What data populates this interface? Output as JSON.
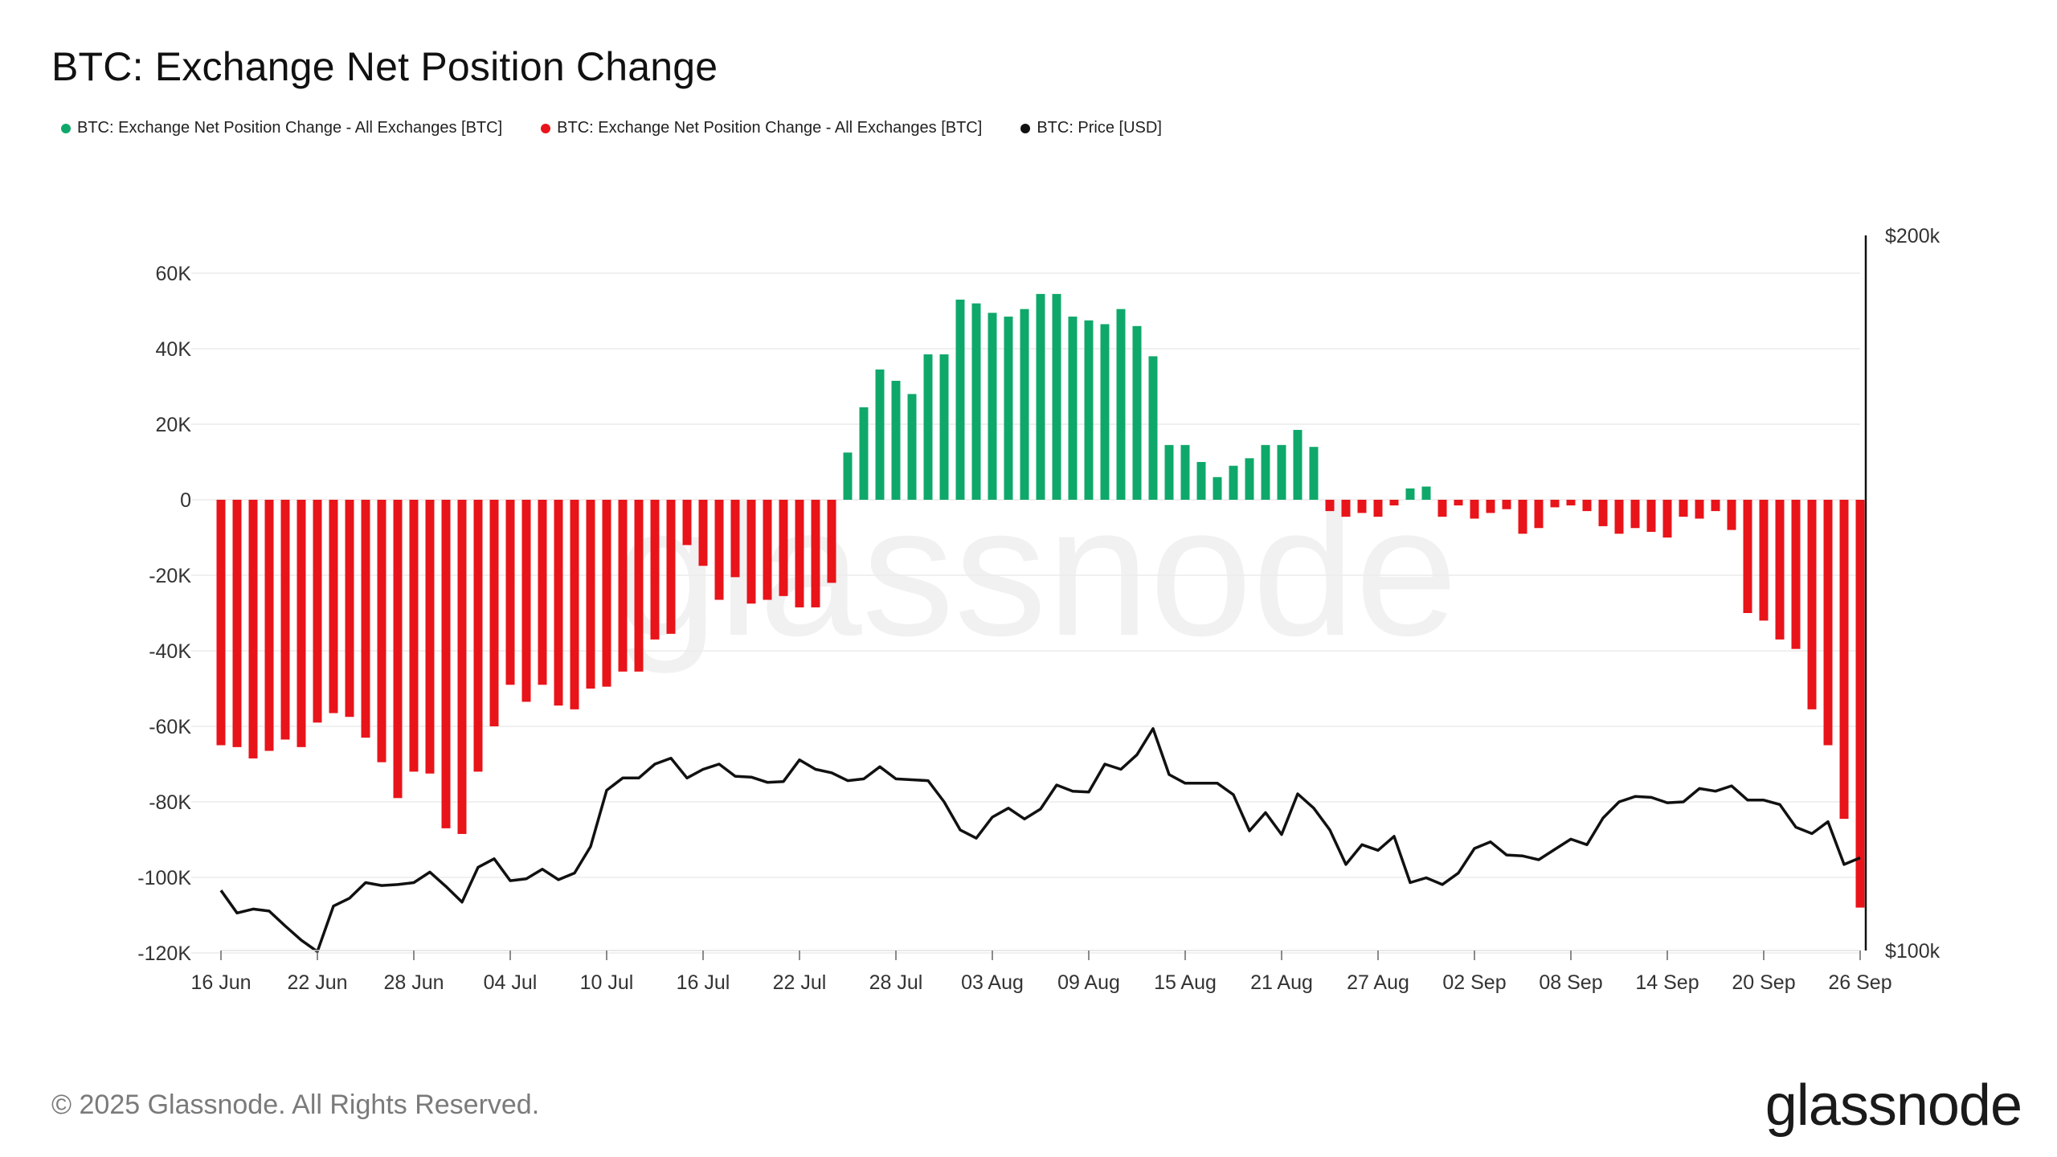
{
  "title": "BTC: Exchange Net Position Change",
  "legend": [
    {
      "label": "BTC: Exchange Net Position Change - All Exchanges [BTC]",
      "color": "#0fa86b"
    },
    {
      "label": "BTC: Exchange Net Position Change - All Exchanges [BTC]",
      "color": "#e8141a"
    },
    {
      "label": "BTC: Price [USD]",
      "color": "#111111"
    }
  ],
  "watermark": "glassnode",
  "footer": {
    "copyright": "© 2025 Glassnode. All Rights Reserved.",
    "logo": "glassnode"
  },
  "colors": {
    "positive": "#0fa86b",
    "negative": "#e8141a",
    "price": "#111111",
    "grid": "#ececec"
  },
  "chart_data": {
    "type": "bar",
    "x_start": "2025-06-16",
    "x_ticks": [
      "16 Jun",
      "22 Jun",
      "28 Jun",
      "04 Jul",
      "10 Jul",
      "16 Jul",
      "22 Jul",
      "28 Jul",
      "03 Aug",
      "09 Aug",
      "15 Aug",
      "21 Aug",
      "27 Aug",
      "02 Sep",
      "08 Sep",
      "14 Sep",
      "20 Sep",
      "26 Sep"
    ],
    "y_left": {
      "ticks": [
        "60K",
        "40K",
        "20K",
        "0",
        "-20K",
        "-40K",
        "-60K",
        "-80K",
        "-100K",
        "-120K"
      ],
      "values": [
        60000,
        40000,
        20000,
        0,
        -20000,
        -40000,
        -60000,
        -80000,
        -100000,
        -120000
      ],
      "ylim": [
        -120000,
        70000
      ]
    },
    "y_right": {
      "ticks": [
        "$200k",
        "$100k"
      ],
      "values": [
        200000,
        100000
      ],
      "scale": "log",
      "ylim": [
        100000,
        200000
      ]
    },
    "grid": true,
    "series": [
      {
        "name": "BTC: Exchange Net Position Change - All Exchanges [BTC]",
        "kind": "bar",
        "values": [
          -65000,
          -65500,
          -68500,
          -66500,
          -63500,
          -65500,
          -59000,
          -56500,
          -57500,
          -63000,
          -69500,
          -79000,
          -72000,
          -72500,
          -87000,
          -88500,
          -72000,
          -60000,
          -49000,
          -53500,
          -49000,
          -54500,
          -55500,
          -50000,
          -49500,
          -45500,
          -45500,
          -37000,
          -35500,
          -12000,
          -17500,
          -26500,
          -20500,
          -27500,
          -26500,
          -25500,
          -28500,
          -28500,
          -22000,
          12500,
          24500,
          34500,
          31500,
          28000,
          38500,
          38500,
          53000,
          52000,
          49500,
          48500,
          50500,
          54500,
          54500,
          48500,
          47500,
          46500,
          50500,
          46000,
          38000,
          14500,
          14500,
          10000,
          6000,
          9000,
          11000,
          14500,
          14500,
          18500,
          14000,
          -3000,
          -4500,
          -3500,
          -4500,
          -1500,
          3000,
          3500,
          -4500,
          -1500,
          -5000,
          -3500,
          -2500,
          -9000,
          -7500,
          -2000,
          -1500,
          -3000,
          -7000,
          -9000,
          -7500,
          -8500,
          -10000,
          -4500,
          -5000,
          -3000,
          -8000,
          -30000,
          -32000,
          -37000,
          -39500,
          -55500,
          -65000,
          -84500,
          -108000
        ]
      },
      {
        "name": "BTC: Price [USD]",
        "kind": "line",
        "values": [
          106000,
          103700,
          104100,
          103900,
          102400,
          101000,
          99900,
          104400,
          105200,
          106800,
          106500,
          106600,
          106800,
          107900,
          106400,
          104800,
          108400,
          109300,
          107000,
          107200,
          108200,
          107100,
          107800,
          110600,
          116800,
          118200,
          118200,
          119800,
          120500,
          118200,
          119200,
          119800,
          118400,
          118300,
          117700,
          117800,
          120300,
          119200,
          118800,
          117900,
          118100,
          119500,
          118100,
          118000,
          117900,
          115500,
          112400,
          111500,
          113800,
          114800,
          113600,
          114700,
          117400,
          116700,
          116600,
          119800,
          119200,
          120900,
          124000,
          118600,
          117600,
          117600,
          117600,
          116300,
          112300,
          114300,
          111900,
          116400,
          114800,
          112400,
          108700,
          110800,
          110200,
          111700,
          106800,
          107300,
          106600,
          107800,
          110400,
          111100,
          109700,
          109600,
          109200,
          110300,
          111400,
          110800,
          113700,
          115500,
          116100,
          116000,
          115400,
          115500,
          117000,
          116700,
          117300,
          115700,
          115700,
          115200,
          112700,
          112000,
          113300,
          108700,
          109400
        ]
      }
    ]
  }
}
